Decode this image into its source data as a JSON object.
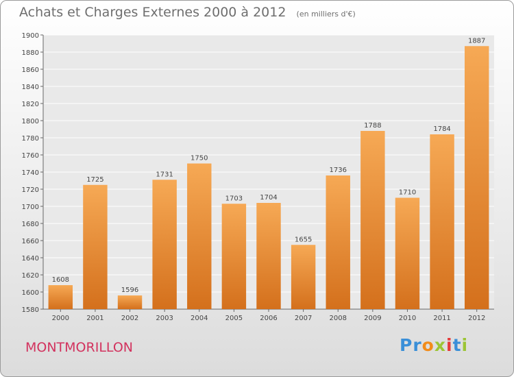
{
  "header": {
    "title": "Achats et Charges Externes 2000 à 2012",
    "subtitle": "(en milliers d'€)"
  },
  "footer": {
    "commune": "MONTMORILLON",
    "logo_letters": [
      "P",
      "r",
      "o",
      "x",
      "i",
      "t",
      "i"
    ],
    "logo_colors": [
      "#3a8fd8",
      "#3a8fd8",
      "#f28c1a",
      "#9cc535",
      "#e53a3a",
      "#3a8fd8",
      "#9cc535"
    ]
  },
  "chart_data": {
    "type": "bar",
    "categories": [
      "2000",
      "2001",
      "2002",
      "2003",
      "2004",
      "2005",
      "2006",
      "2007",
      "2008",
      "2009",
      "2010",
      "2011",
      "2012"
    ],
    "values": [
      1608,
      1725,
      1596,
      1731,
      1750,
      1703,
      1704,
      1655,
      1736,
      1788,
      1710,
      1784,
      1887
    ],
    "ylim": [
      1580,
      1900
    ],
    "yticks": [
      1580,
      1600,
      1620,
      1640,
      1660,
      1680,
      1700,
      1720,
      1740,
      1760,
      1780,
      1800,
      1820,
      1840,
      1860,
      1880,
      1900
    ],
    "grid": true,
    "bar_color": "#f0923a",
    "bar_color_light": "#f6a955",
    "bar_color_dark": "#d4701c",
    "data_labels": true
  }
}
